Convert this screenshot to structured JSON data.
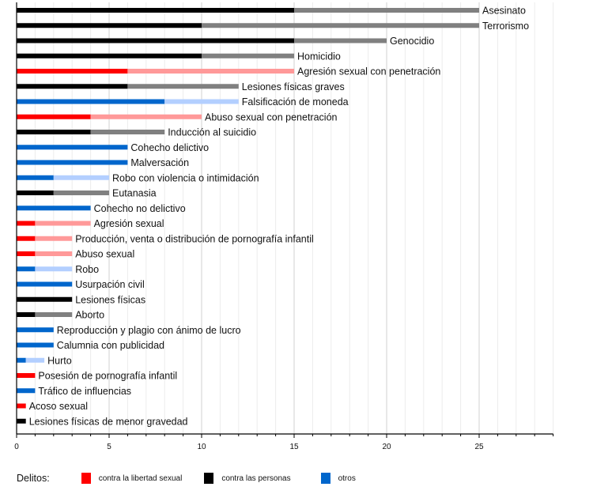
{
  "chart_data": {
    "type": "bar",
    "orientation": "horizontal",
    "title": "",
    "xlabel": "",
    "ylabel": "",
    "xlim": [
      0,
      29
    ],
    "xticks": [
      0,
      5,
      10,
      15,
      20,
      25
    ],
    "grid": true,
    "legend_placement": "bottom-left",
    "legend_title": "Delitos:",
    "categories_info": {
      "sexual": {
        "name": "contra la libertad sexual",
        "color": "#ff0000",
        "light": "#ff9999"
      },
      "personas": {
        "name": "contra las personas",
        "color": "#000000",
        "light": "#808080"
      },
      "otros": {
        "name": "otros",
        "color": "#0066cc",
        "light": "#b3cfff"
      }
    },
    "series": [
      {
        "name": "Asesinato",
        "category": "personas",
        "min": 15,
        "max": 25
      },
      {
        "name": "Terrorismo",
        "category": "personas",
        "min": 10,
        "max": 25
      },
      {
        "name": "Genocidio",
        "category": "personas",
        "min": 15,
        "max": 20
      },
      {
        "name": "Homicidio",
        "category": "personas",
        "min": 10,
        "max": 15
      },
      {
        "name": "Agresión sexual con penetración",
        "category": "sexual",
        "min": 6,
        "max": 15
      },
      {
        "name": "Lesiones físicas graves",
        "category": "personas",
        "min": 6,
        "max": 12
      },
      {
        "name": "Falsificación de moneda",
        "category": "otros",
        "min": 8,
        "max": 12
      },
      {
        "name": "Abuso sexual con penetración",
        "category": "sexual",
        "min": 4,
        "max": 10
      },
      {
        "name": "Inducción al suicidio",
        "category": "personas",
        "min": 4,
        "max": 8
      },
      {
        "name": "Cohecho delictivo",
        "category": "otros",
        "min": 6,
        "max": 6
      },
      {
        "name": "Malversación",
        "category": "otros",
        "min": 6,
        "max": 6
      },
      {
        "name": "Robo con violencia o intimidación",
        "category": "otros",
        "min": 2,
        "max": 5
      },
      {
        "name": "Eutanasia",
        "category": "personas",
        "min": 2,
        "max": 5
      },
      {
        "name": "Cohecho no delictivo",
        "category": "otros",
        "min": 4,
        "max": 4
      },
      {
        "name": "Agresión sexual",
        "category": "sexual",
        "min": 1,
        "max": 4
      },
      {
        "name": "Producción, venta o distribución de pornografía infantil",
        "category": "sexual",
        "min": 1,
        "max": 3
      },
      {
        "name": "Abuso sexual",
        "category": "sexual",
        "min": 1,
        "max": 3
      },
      {
        "name": "Robo",
        "category": "otros",
        "min": 1,
        "max": 3
      },
      {
        "name": "Usurpación civil",
        "category": "otros",
        "min": 3,
        "max": 3
      },
      {
        "name": "Lesiones físicas",
        "category": "personas",
        "min": 3,
        "max": 3
      },
      {
        "name": "Aborto",
        "category": "personas",
        "min": 1,
        "max": 3
      },
      {
        "name": "Reproducción y plagio con ánimo de lucro",
        "category": "otros",
        "min": 2,
        "max": 2
      },
      {
        "name": "Calumnia con publicidad",
        "category": "otros",
        "min": 2,
        "max": 2
      },
      {
        "name": "Hurto",
        "category": "otros",
        "min": 0.5,
        "max": 1.5
      },
      {
        "name": "Posesión de pornografía infantil",
        "category": "sexual",
        "min": 1,
        "max": 1
      },
      {
        "name": "Tráfico de influencias",
        "category": "otros",
        "min": 1,
        "max": 1
      },
      {
        "name": "Acoso sexual",
        "category": "sexual",
        "min": 0.5,
        "max": 0.5
      },
      {
        "name": "Lesiones físicas de menor gravedad",
        "category": "personas",
        "min": 0.5,
        "max": 0.5
      }
    ]
  },
  "legend": {
    "title": "Delitos:",
    "items": [
      {
        "label": "contra la libertad sexual",
        "color": "#ff0000"
      },
      {
        "label": "contra las personas",
        "color": "#000000"
      },
      {
        "label": "otros",
        "color": "#0066cc"
      }
    ]
  }
}
